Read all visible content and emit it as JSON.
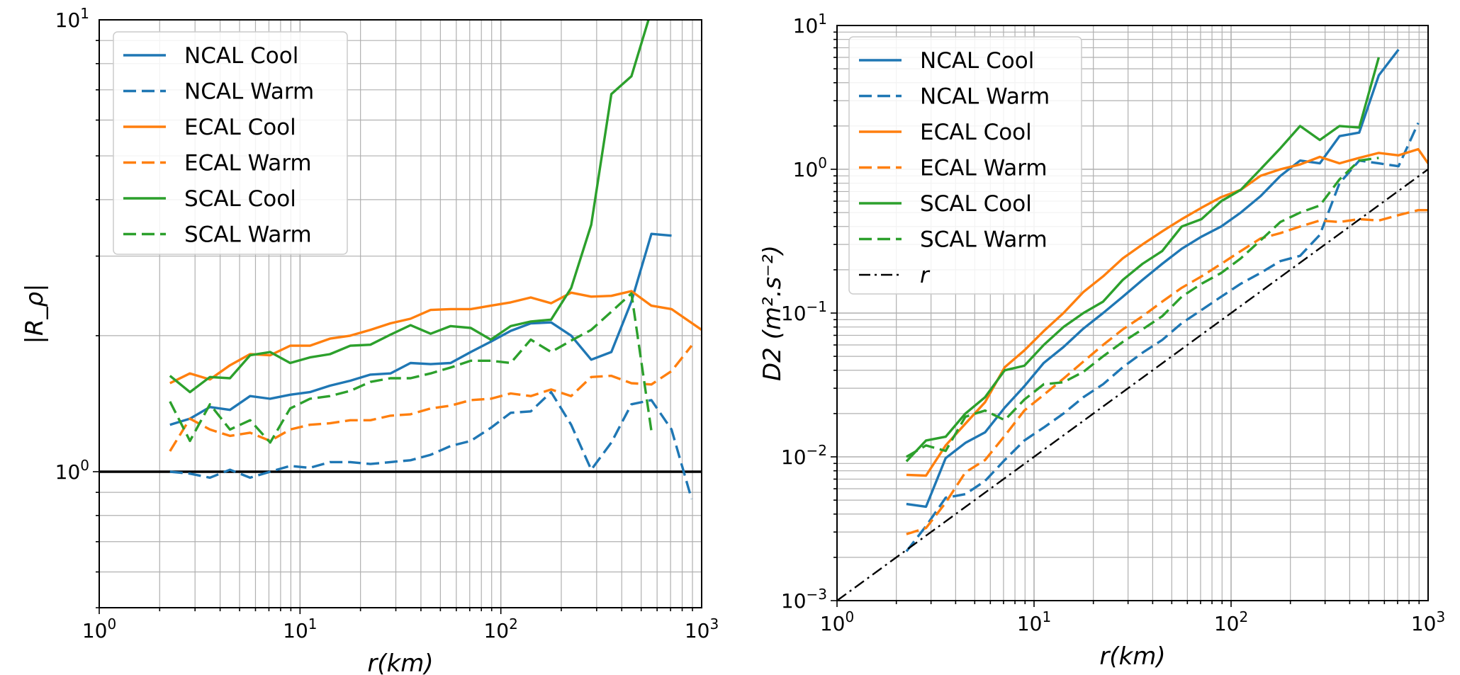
{
  "chart_data": [
    {
      "type": "line",
      "title": "",
      "xlabel": "r(km)",
      "ylabel": "|R_ρ|",
      "xscale": "log",
      "yscale": "log",
      "xlim": [
        1,
        1000
      ],
      "ylim": [
        0.5,
        10
      ],
      "grid": true,
      "legend_position": "top-left",
      "x_ticks": [
        {
          "base": "10",
          "exp": "0"
        },
        {
          "base": "10",
          "exp": "1"
        },
        {
          "base": "10",
          "exp": "2"
        },
        {
          "base": "10",
          "exp": "3"
        }
      ],
      "y_ticks": [
        {
          "base": "10",
          "exp": "0",
          "value": 1
        },
        {
          "base": "10",
          "exp": "1",
          "value": 10
        }
      ],
      "reference_line": {
        "y": 1,
        "color": "#000000",
        "style": "solid"
      },
      "series": [
        {
          "name": "NCAL Cool",
          "color": "#1f77b4",
          "style": "solid",
          "x": [
            2.25,
            2.83,
            3.56,
            4.48,
            5.64,
            7.1,
            8.93,
            11.2,
            14.1,
            17.8,
            22.4,
            28.2,
            35.5,
            44.7,
            56.2,
            70.8,
            89.1,
            112,
            141,
            178,
            224,
            282,
            355,
            447,
            562,
            708
          ],
          "y": [
            1.27,
            1.31,
            1.39,
            1.37,
            1.47,
            1.45,
            1.48,
            1.5,
            1.55,
            1.59,
            1.64,
            1.65,
            1.74,
            1.73,
            1.74,
            1.84,
            1.94,
            2.05,
            2.13,
            2.14,
            2.0,
            1.77,
            1.84,
            2.38,
            3.36,
            3.33
          ]
        },
        {
          "name": "NCAL Warm",
          "color": "#1f77b4",
          "style": "dashed",
          "x": [
            2.25,
            2.83,
            3.56,
            4.48,
            5.64,
            7.1,
            8.93,
            11.2,
            14.1,
            17.8,
            22.4,
            28.2,
            35.5,
            44.7,
            56.2,
            70.8,
            89.1,
            112,
            141,
            178,
            224,
            282,
            355,
            447,
            562,
            708,
            891
          ],
          "y": [
            1.0,
            0.99,
            0.97,
            1.01,
            0.97,
            1.0,
            1.03,
            1.02,
            1.05,
            1.05,
            1.04,
            1.05,
            1.06,
            1.09,
            1.14,
            1.17,
            1.25,
            1.35,
            1.36,
            1.5,
            1.27,
            1.01,
            1.16,
            1.41,
            1.44,
            1.24,
            0.87
          ]
        },
        {
          "name": "ECAL Cool",
          "color": "#ff7f0e",
          "style": "solid",
          "x": [
            2.25,
            2.83,
            3.56,
            4.48,
            5.64,
            7.1,
            8.93,
            11.2,
            14.1,
            17.8,
            22.4,
            28.2,
            35.5,
            44.7,
            56.2,
            70.8,
            89.1,
            112,
            141,
            178,
            224,
            282,
            355,
            447,
            562,
            708,
            1000
          ],
          "y": [
            1.57,
            1.65,
            1.6,
            1.72,
            1.82,
            1.81,
            1.9,
            1.9,
            1.97,
            2.0,
            2.06,
            2.13,
            2.18,
            2.28,
            2.29,
            2.29,
            2.33,
            2.37,
            2.43,
            2.36,
            2.49,
            2.44,
            2.45,
            2.51,
            2.33,
            2.29,
            2.06
          ]
        },
        {
          "name": "ECAL Warm",
          "color": "#ff7f0e",
          "style": "dashed",
          "x": [
            2.25,
            2.83,
            3.56,
            4.48,
            5.64,
            7.1,
            8.93,
            11.2,
            14.1,
            17.8,
            22.4,
            28.2,
            35.5,
            44.7,
            56.2,
            70.8,
            89.1,
            112,
            141,
            178,
            224,
            282,
            355,
            447,
            562,
            708,
            891
          ],
          "y": [
            1.11,
            1.31,
            1.24,
            1.2,
            1.22,
            1.17,
            1.24,
            1.27,
            1.28,
            1.3,
            1.3,
            1.33,
            1.34,
            1.38,
            1.4,
            1.44,
            1.45,
            1.49,
            1.47,
            1.52,
            1.47,
            1.62,
            1.63,
            1.57,
            1.56,
            1.67,
            1.9
          ]
        },
        {
          "name": "SCAL Cool",
          "color": "#2ca02c",
          "style": "solid",
          "x": [
            2.25,
            2.83,
            3.56,
            4.48,
            5.64,
            7.1,
            8.93,
            11.2,
            14.1,
            17.8,
            22.4,
            28.2,
            35.5,
            44.7,
            56.2,
            70.8,
            89.1,
            112,
            141,
            178,
            224,
            282,
            355,
            447,
            562
          ],
          "y": [
            1.63,
            1.5,
            1.62,
            1.61,
            1.81,
            1.84,
            1.74,
            1.79,
            1.82,
            1.9,
            1.91,
            2.01,
            2.11,
            2.02,
            2.1,
            2.08,
            1.96,
            2.1,
            2.15,
            2.17,
            2.55,
            3.52,
            6.85,
            7.5,
            10.5
          ]
        },
        {
          "name": "SCAL Warm",
          "color": "#2ca02c",
          "style": "dashed",
          "x": [
            2.25,
            2.83,
            3.56,
            4.48,
            5.64,
            7.1,
            8.93,
            11.2,
            14.1,
            17.8,
            22.4,
            28.2,
            35.5,
            44.7,
            56.2,
            70.8,
            89.1,
            112,
            141,
            178,
            224,
            282,
            355,
            447,
            562
          ],
          "y": [
            1.43,
            1.17,
            1.41,
            1.24,
            1.3,
            1.16,
            1.38,
            1.45,
            1.47,
            1.51,
            1.58,
            1.61,
            1.61,
            1.65,
            1.7,
            1.76,
            1.76,
            1.74,
            1.96,
            1.84,
            1.95,
            2.06,
            2.26,
            2.48,
            1.23
          ]
        }
      ]
    },
    {
      "type": "line",
      "title": "",
      "xlabel": "r(km)",
      "ylabel": "D2 (m².s⁻²)",
      "xscale": "log",
      "yscale": "log",
      "xlim": [
        1,
        1000
      ],
      "ylim": [
        0.001,
        10
      ],
      "grid": true,
      "legend_position": "top-left",
      "x_ticks": [
        {
          "base": "10",
          "exp": "0"
        },
        {
          "base": "10",
          "exp": "1"
        },
        {
          "base": "10",
          "exp": "2"
        },
        {
          "base": "10",
          "exp": "3"
        }
      ],
      "y_ticks": [
        {
          "base": "10",
          "exp": "−3",
          "value": 0.001
        },
        {
          "base": "10",
          "exp": "−2",
          "value": 0.01
        },
        {
          "base": "10",
          "exp": "−1",
          "value": 0.1
        },
        {
          "base": "10",
          "exp": "0",
          "value": 1
        },
        {
          "base": "10",
          "exp": "1",
          "value": 10
        }
      ],
      "series": [
        {
          "name": "NCAL Cool",
          "color": "#1f77b4",
          "style": "solid",
          "x": [
            2.25,
            2.83,
            3.56,
            4.48,
            5.64,
            7.1,
            8.93,
            11.2,
            14.1,
            17.8,
            22.4,
            28.2,
            35.5,
            44.7,
            56.2,
            70.8,
            89.1,
            112,
            141,
            178,
            224,
            282,
            355,
            447,
            562,
            708
          ],
          "y": [
            0.0047,
            0.0045,
            0.0098,
            0.0125,
            0.0148,
            0.022,
            0.031,
            0.045,
            0.058,
            0.078,
            0.1,
            0.13,
            0.17,
            0.22,
            0.28,
            0.34,
            0.4,
            0.5,
            0.65,
            0.9,
            1.15,
            1.1,
            1.7,
            1.8,
            4.5,
            6.8
          ]
        },
        {
          "name": "NCAL Warm",
          "color": "#1f77b4",
          "style": "dashed",
          "x": [
            2.25,
            2.83,
            3.56,
            4.48,
            5.64,
            7.1,
            8.93,
            11.2,
            14.1,
            17.8,
            22.4,
            28.2,
            35.5,
            44.7,
            56.2,
            70.8,
            89.1,
            112,
            141,
            178,
            224,
            282,
            355,
            447,
            562,
            708,
            891
          ],
          "y": [
            0.0022,
            0.0033,
            0.0052,
            0.0055,
            0.0068,
            0.0095,
            0.013,
            0.016,
            0.02,
            0.026,
            0.032,
            0.042,
            0.053,
            0.065,
            0.085,
            0.105,
            0.13,
            0.16,
            0.19,
            0.23,
            0.25,
            0.35,
            0.8,
            1.15,
            1.1,
            1.05,
            2.1
          ]
        },
        {
          "name": "ECAL Cool",
          "color": "#ff7f0e",
          "style": "solid",
          "x": [
            2.25,
            2.83,
            3.56,
            4.48,
            5.64,
            7.1,
            8.93,
            11.2,
            14.1,
            17.8,
            22.4,
            28.2,
            35.5,
            44.7,
            56.2,
            70.8,
            89.1,
            112,
            141,
            178,
            224,
            282,
            355,
            447,
            562,
            708,
            891,
            1000
          ],
          "y": [
            0.0075,
            0.0074,
            0.012,
            0.017,
            0.024,
            0.042,
            0.055,
            0.075,
            0.1,
            0.14,
            0.18,
            0.24,
            0.3,
            0.37,
            0.45,
            0.54,
            0.64,
            0.72,
            0.9,
            1.0,
            1.08,
            1.22,
            1.1,
            1.2,
            1.3,
            1.25,
            1.38,
            1.1
          ]
        },
        {
          "name": "ECAL Warm",
          "color": "#ff7f0e",
          "style": "dashed",
          "x": [
            2.25,
            2.83,
            3.56,
            4.48,
            5.64,
            7.1,
            8.93,
            11.2,
            14.1,
            17.8,
            22.4,
            28.2,
            35.5,
            44.7,
            56.2,
            70.8,
            89.1,
            112,
            141,
            178,
            224,
            282,
            355,
            447,
            562,
            708,
            891,
            1000
          ],
          "y": [
            0.0029,
            0.0032,
            0.0048,
            0.0078,
            0.0095,
            0.014,
            0.021,
            0.027,
            0.035,
            0.046,
            0.06,
            0.077,
            0.095,
            0.12,
            0.15,
            0.18,
            0.22,
            0.27,
            0.33,
            0.36,
            0.4,
            0.44,
            0.43,
            0.45,
            0.44,
            0.48,
            0.52,
            0.52
          ]
        },
        {
          "name": "SCAL Cool",
          "color": "#2ca02c",
          "style": "solid",
          "x": [
            2.25,
            2.83,
            3.56,
            4.48,
            5.64,
            7.1,
            8.93,
            11.2,
            14.1,
            17.8,
            22.4,
            28.2,
            35.5,
            44.7,
            56.2,
            70.8,
            89.1,
            112,
            141,
            178,
            224,
            282,
            355,
            447,
            562
          ],
          "y": [
            0.0093,
            0.013,
            0.0138,
            0.02,
            0.026,
            0.04,
            0.043,
            0.06,
            0.08,
            0.1,
            0.12,
            0.17,
            0.22,
            0.27,
            0.4,
            0.45,
            0.6,
            0.72,
            1.0,
            1.4,
            2.0,
            1.6,
            2.0,
            1.95,
            6.0
          ]
        },
        {
          "name": "SCAL Warm",
          "color": "#2ca02c",
          "style": "dashed",
          "x": [
            2.25,
            2.83,
            3.56,
            4.48,
            5.64,
            7.1,
            8.93,
            11.2,
            14.1,
            17.8,
            22.4,
            28.2,
            35.5,
            44.7,
            56.2,
            70.8,
            89.1,
            112,
            141,
            178,
            224,
            282,
            355,
            447,
            562
          ],
          "y": [
            0.01,
            0.012,
            0.011,
            0.019,
            0.021,
            0.018,
            0.025,
            0.032,
            0.033,
            0.039,
            0.05,
            0.063,
            0.077,
            0.095,
            0.13,
            0.16,
            0.19,
            0.24,
            0.32,
            0.43,
            0.5,
            0.56,
            0.85,
            1.15,
            1.2
          ]
        },
        {
          "name": "r",
          "color": "#000000",
          "style": "dashdot",
          "x": [
            1,
            1000
          ],
          "y": [
            0.001,
            1
          ]
        }
      ]
    }
  ]
}
